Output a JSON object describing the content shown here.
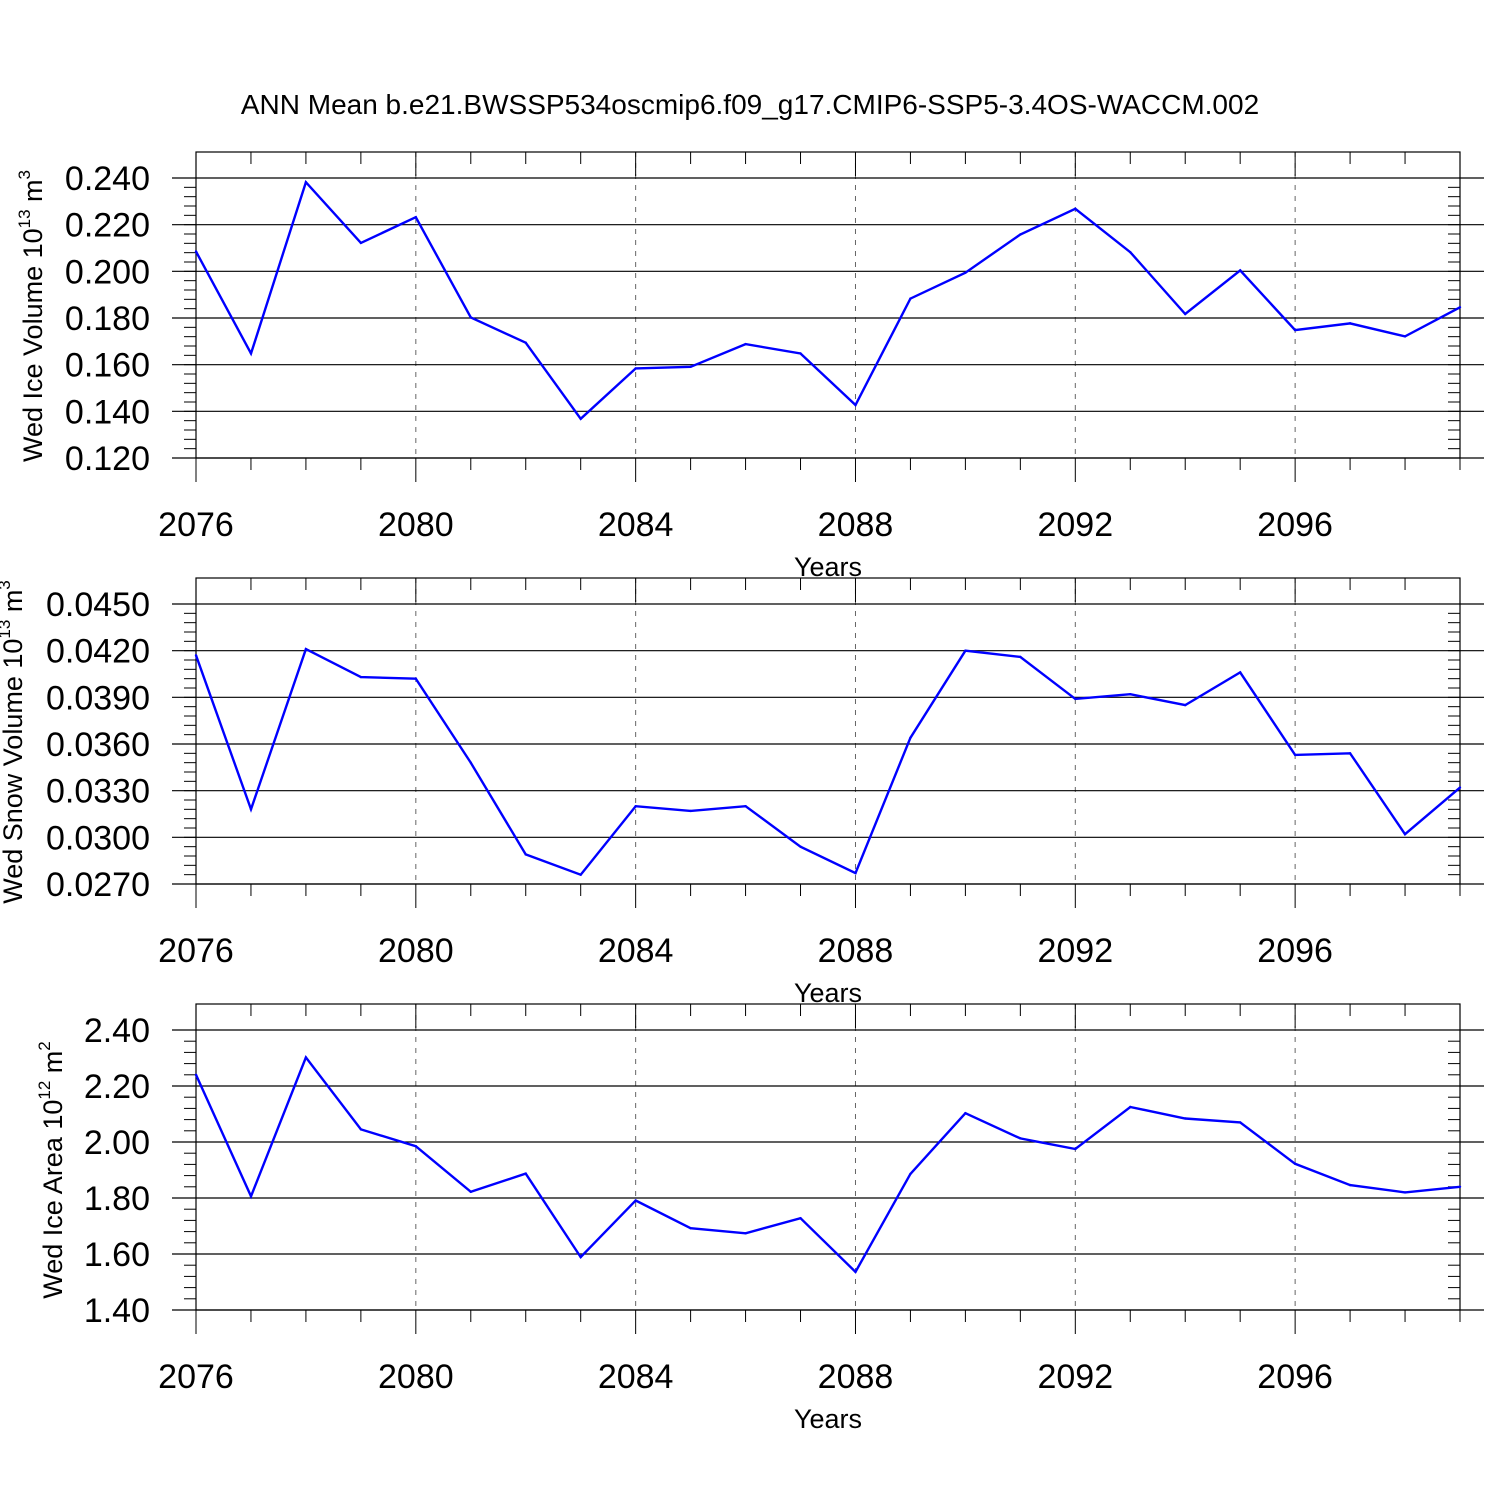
{
  "title": "ANN Mean b.e21.BWSSP534oscmip6.f09_g17.CMIP6-SSP5-3.4OS-WACCM.002",
  "colors": {
    "line": "#0000ff",
    "axis": "#000000",
    "grid": "#000000"
  },
  "chart_data": [
    {
      "type": "line",
      "ylabel": {
        "text": "Wed Ice Volume 10",
        "exp": "13",
        "unit": " m",
        "unit_exp": "3"
      },
      "xlabel": "Years",
      "xlim": [
        2076,
        2099
      ],
      "ylim": [
        0.12,
        0.24
      ],
      "yticks": [
        0.12,
        0.14,
        0.16,
        0.18,
        0.2,
        0.22,
        0.24
      ],
      "ytick_labels": [
        "0.120",
        "0.140",
        "0.160",
        "0.180",
        "0.200",
        "0.220",
        "0.240"
      ],
      "xticks": [
        2076,
        2080,
        2084,
        2088,
        2092,
        2096
      ],
      "xtick_labels": [
        "2076",
        "2080",
        "2084",
        "2088",
        "2092",
        "2096"
      ],
      "grid": "vertical-dashed",
      "x": [
        2076,
        2077,
        2078,
        2079,
        2080,
        2081,
        2082,
        2083,
        2084,
        2085,
        2086,
        2087,
        2088,
        2089,
        2090,
        2091,
        2092,
        2093,
        2094,
        2095,
        2096,
        2097,
        2098,
        2099
      ],
      "values": [
        0.2085,
        0.1648,
        0.2382,
        0.2122,
        0.2232,
        0.1802,
        0.1694,
        0.1368,
        0.1584,
        0.1591,
        0.1688,
        0.1648,
        0.1427,
        0.1883,
        0.1994,
        0.2158,
        0.2268,
        0.2082,
        0.1817,
        0.2004,
        0.1748,
        0.1777,
        0.1721,
        0.1846
      ]
    },
    {
      "type": "line",
      "ylabel": {
        "text": "Wed Snow Volume 10",
        "exp": "13",
        "unit": " m",
        "unit_exp": "3"
      },
      "xlabel": "Years",
      "xlim": [
        2076,
        2099
      ],
      "ylim": [
        0.027,
        0.045
      ],
      "yticks": [
        0.027,
        0.03,
        0.033,
        0.036,
        0.039,
        0.042,
        0.045
      ],
      "ytick_labels": [
        "0.0270",
        "0.0300",
        "0.0330",
        "0.0360",
        "0.0390",
        "0.0420",
        "0.0450"
      ],
      "xticks": [
        2076,
        2080,
        2084,
        2088,
        2092,
        2096
      ],
      "xtick_labels": [
        "2076",
        "2080",
        "2084",
        "2088",
        "2092",
        "2096"
      ],
      "grid": "vertical-dashed",
      "x": [
        2076,
        2077,
        2078,
        2079,
        2080,
        2081,
        2082,
        2083,
        2084,
        2085,
        2086,
        2087,
        2088,
        2089,
        2090,
        2091,
        2092,
        2093,
        2094,
        2095,
        2096,
        2097,
        2098,
        2099
      ],
      "values": [
        0.0417,
        0.0318,
        0.0421,
        0.0403,
        0.0402,
        0.0348,
        0.0289,
        0.0276,
        0.032,
        0.0317,
        0.032,
        0.0294,
        0.0277,
        0.0364,
        0.042,
        0.0416,
        0.0389,
        0.0392,
        0.0385,
        0.0406,
        0.0353,
        0.0354,
        0.0302,
        0.0332
      ]
    },
    {
      "type": "line",
      "ylabel": {
        "text": "Wed Ice Area 10",
        "exp": "12",
        "unit": " m",
        "unit_exp": "2"
      },
      "xlabel": "Years",
      "xlim": [
        2076,
        2099
      ],
      "ylim": [
        1.4,
        2.4
      ],
      "yticks": [
        1.4,
        1.6,
        1.8,
        2.0,
        2.2,
        2.4
      ],
      "ytick_labels": [
        "1.40",
        "1.60",
        "1.80",
        "2.00",
        "2.20",
        "2.40"
      ],
      "xticks": [
        2076,
        2080,
        2084,
        2088,
        2092,
        2096
      ],
      "xtick_labels": [
        "2076",
        "2080",
        "2084",
        "2088",
        "2092",
        "2096"
      ],
      "grid": "vertical-dashed",
      "x": [
        2076,
        2077,
        2078,
        2079,
        2080,
        2081,
        2082,
        2083,
        2084,
        2085,
        2086,
        2087,
        2088,
        2089,
        2090,
        2091,
        2092,
        2093,
        2094,
        2095,
        2096,
        2097,
        2098,
        2099
      ],
      "values": [
        2.24,
        1.806,
        2.302,
        2.045,
        1.985,
        1.822,
        1.887,
        1.589,
        1.791,
        1.692,
        1.674,
        1.728,
        1.536,
        1.886,
        2.103,
        2.013,
        1.975,
        2.125,
        2.084,
        2.07,
        1.922,
        1.846,
        1.82,
        1.84
      ]
    }
  ]
}
